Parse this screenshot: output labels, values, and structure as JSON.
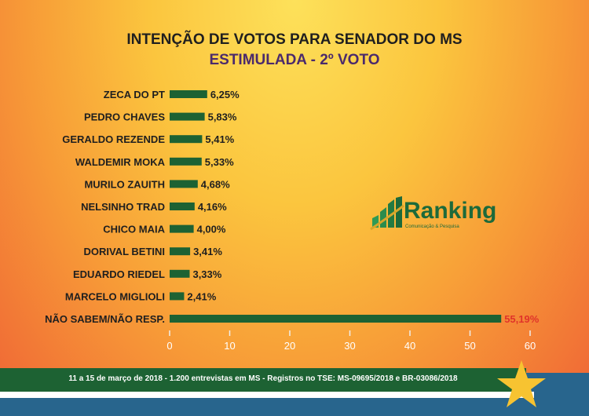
{
  "chart_data": {
    "type": "bar",
    "orientation": "horizontal",
    "title": "INTENÇÃO DE VOTOS PARA SENADOR DO MS",
    "subtitle": "ESTIMULADA - 2º VOTO",
    "categories": [
      "ZECA DO PT",
      "PEDRO CHAVES",
      "GERALDO REZENDE",
      "WALDEMIR MOKA",
      "MURILO ZAUITH",
      "NELSINHO TRAD",
      "CHICO MAIA",
      "DORIVAL BETINI",
      "EDUARDO RIEDEL",
      "MARCELO MIGLIOLI",
      "NÃO SABEM/NÃO RESP."
    ],
    "values": [
      6.25,
      5.83,
      5.41,
      5.33,
      4.68,
      4.16,
      4.0,
      3.41,
      3.33,
      2.41,
      55.19
    ],
    "data_labels": [
      "6,25%",
      "5,83%",
      "5,41%",
      "5,33%",
      "4,68%",
      "4,16%",
      "4,00%",
      "3,41%",
      "3,33%",
      "2,41%",
      "55,19%"
    ],
    "xlim": [
      0,
      60
    ],
    "xticks": [
      0,
      10,
      20,
      30,
      40,
      50,
      60
    ],
    "grid": false,
    "colors": {
      "bar": "#1d6233",
      "label": "#1f1f1f",
      "highlight_label": "#e0332a",
      "tick": "#ffffff"
    }
  },
  "logo": {
    "name": "Ranking",
    "tagline": "Comunicação & Pesquisa"
  },
  "footer": {
    "text": "11 a 15 de março de 2018 - 1.200 entrevistas em MS - Registros no TSE: MS-09695/2018 e BR-03086/2018"
  }
}
